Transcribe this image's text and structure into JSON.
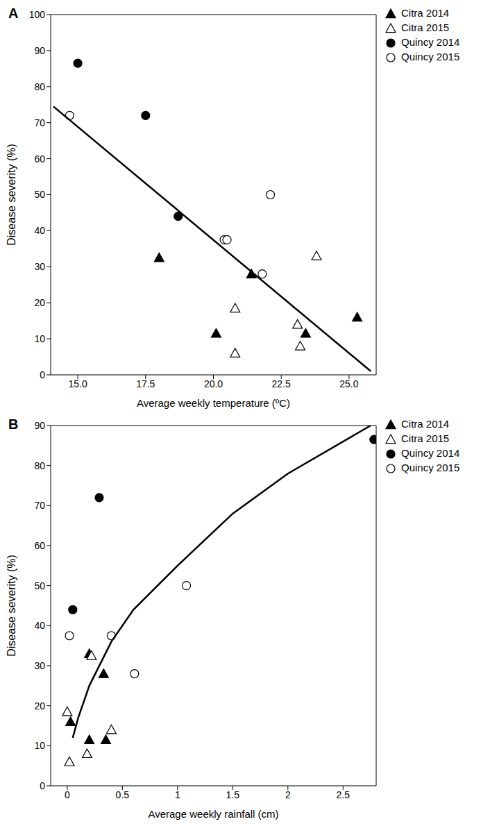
{
  "chart_data": [
    {
      "type": "scatter",
      "title": "A",
      "x_label": "Average weekly temperature (ºC)",
      "y_label": "Disease severity (%)",
      "xlim": [
        14,
        26
      ],
      "ylim": [
        0,
        100
      ],
      "xticks": [
        {
          "value": 15,
          "label": "15.0"
        },
        {
          "value": 17.5,
          "label": "17.5"
        },
        {
          "value": 20,
          "label": "20.0"
        },
        {
          "value": 22.5,
          "label": "22.5"
        },
        {
          "value": 25,
          "label": "25.0"
        }
      ],
      "yticks": [
        0,
        10,
        20,
        30,
        40,
        50,
        60,
        70,
        80,
        90,
        100
      ],
      "legend": "right",
      "series": [
        {
          "name": "Citra 2014",
          "color": "#000000",
          "marker": "triangle",
          "x": [
            18.0,
            20.1,
            21.4,
            23.4,
            25.3
          ],
          "values": [
            32.5,
            11.5,
            28,
            11.5,
            16
          ]
        },
        {
          "name": "Citra 2015",
          "color": "#000000",
          "marker": "triangle-open",
          "x": [
            20.8,
            20.8,
            23.1,
            23.2,
            23.8
          ],
          "values": [
            18.5,
            6,
            14,
            8,
            33
          ]
        },
        {
          "name": "Quincy 2014",
          "color": "#000000",
          "marker": "circle",
          "x": [
            15.0,
            17.5,
            18.7
          ],
          "values": [
            86.5,
            72,
            44
          ]
        },
        {
          "name": "Quincy 2015",
          "color": "#000000",
          "marker": "circle-open",
          "x": [
            14.7,
            20.4,
            20.5,
            21.8,
            22.1
          ],
          "values": [
            72,
            37.5,
            37.5,
            28,
            50
          ]
        },
        {
          "type": "line",
          "color": "#000000",
          "line_style": "solid",
          "x": [
            14.1,
            25.8
          ],
          "values": [
            74.5,
            1
          ]
        }
      ]
    },
    {
      "type": "scatter",
      "title": "B",
      "x_label": "Average weekly rainfall (cm)",
      "y_label": "Disease severity (%)",
      "xlim": [
        -0.15,
        2.8
      ],
      "ylim": [
        0,
        90
      ],
      "xticks": [
        0,
        0.5,
        1,
        1.5,
        2,
        2.5
      ],
      "yticks": [
        0,
        10,
        20,
        30,
        40,
        50,
        60,
        70,
        80,
        90
      ],
      "legend": "right",
      "series": [
        {
          "name": "Citra 2014",
          "color": "#000000",
          "marker": "triangle",
          "x": [
            0.03,
            0.2,
            0.2,
            0.33,
            0.35
          ],
          "values": [
            16,
            33,
            11.5,
            28,
            11.5
          ]
        },
        {
          "name": "Citra 2015",
          "color": "#000000",
          "marker": "triangle-open",
          "x": [
            0.0,
            0.02,
            0.18,
            0.22,
            0.4
          ],
          "values": [
            18.5,
            6,
            8,
            32.5,
            14
          ]
        },
        {
          "name": "Quincy 2014",
          "color": "#000000",
          "marker": "circle",
          "x": [
            0.05,
            0.29,
            2.78
          ],
          "values": [
            44,
            72,
            86.5
          ]
        },
        {
          "name": "Quincy 2015",
          "color": "#000000",
          "marker": "circle-open",
          "x": [
            0.02,
            0.4,
            0.61,
            1.08
          ],
          "values": [
            37.5,
            37.5,
            28,
            50
          ]
        },
        {
          "type": "line",
          "color": "#000000",
          "line_style": "solid",
          "x": [
            0.05,
            0.1,
            0.2,
            0.4,
            0.6,
            1.0,
            1.5,
            2.0,
            2.5,
            2.75
          ],
          "values": [
            12,
            17,
            25,
            36,
            44,
            55,
            68,
            78,
            86,
            90
          ]
        }
      ]
    }
  ]
}
